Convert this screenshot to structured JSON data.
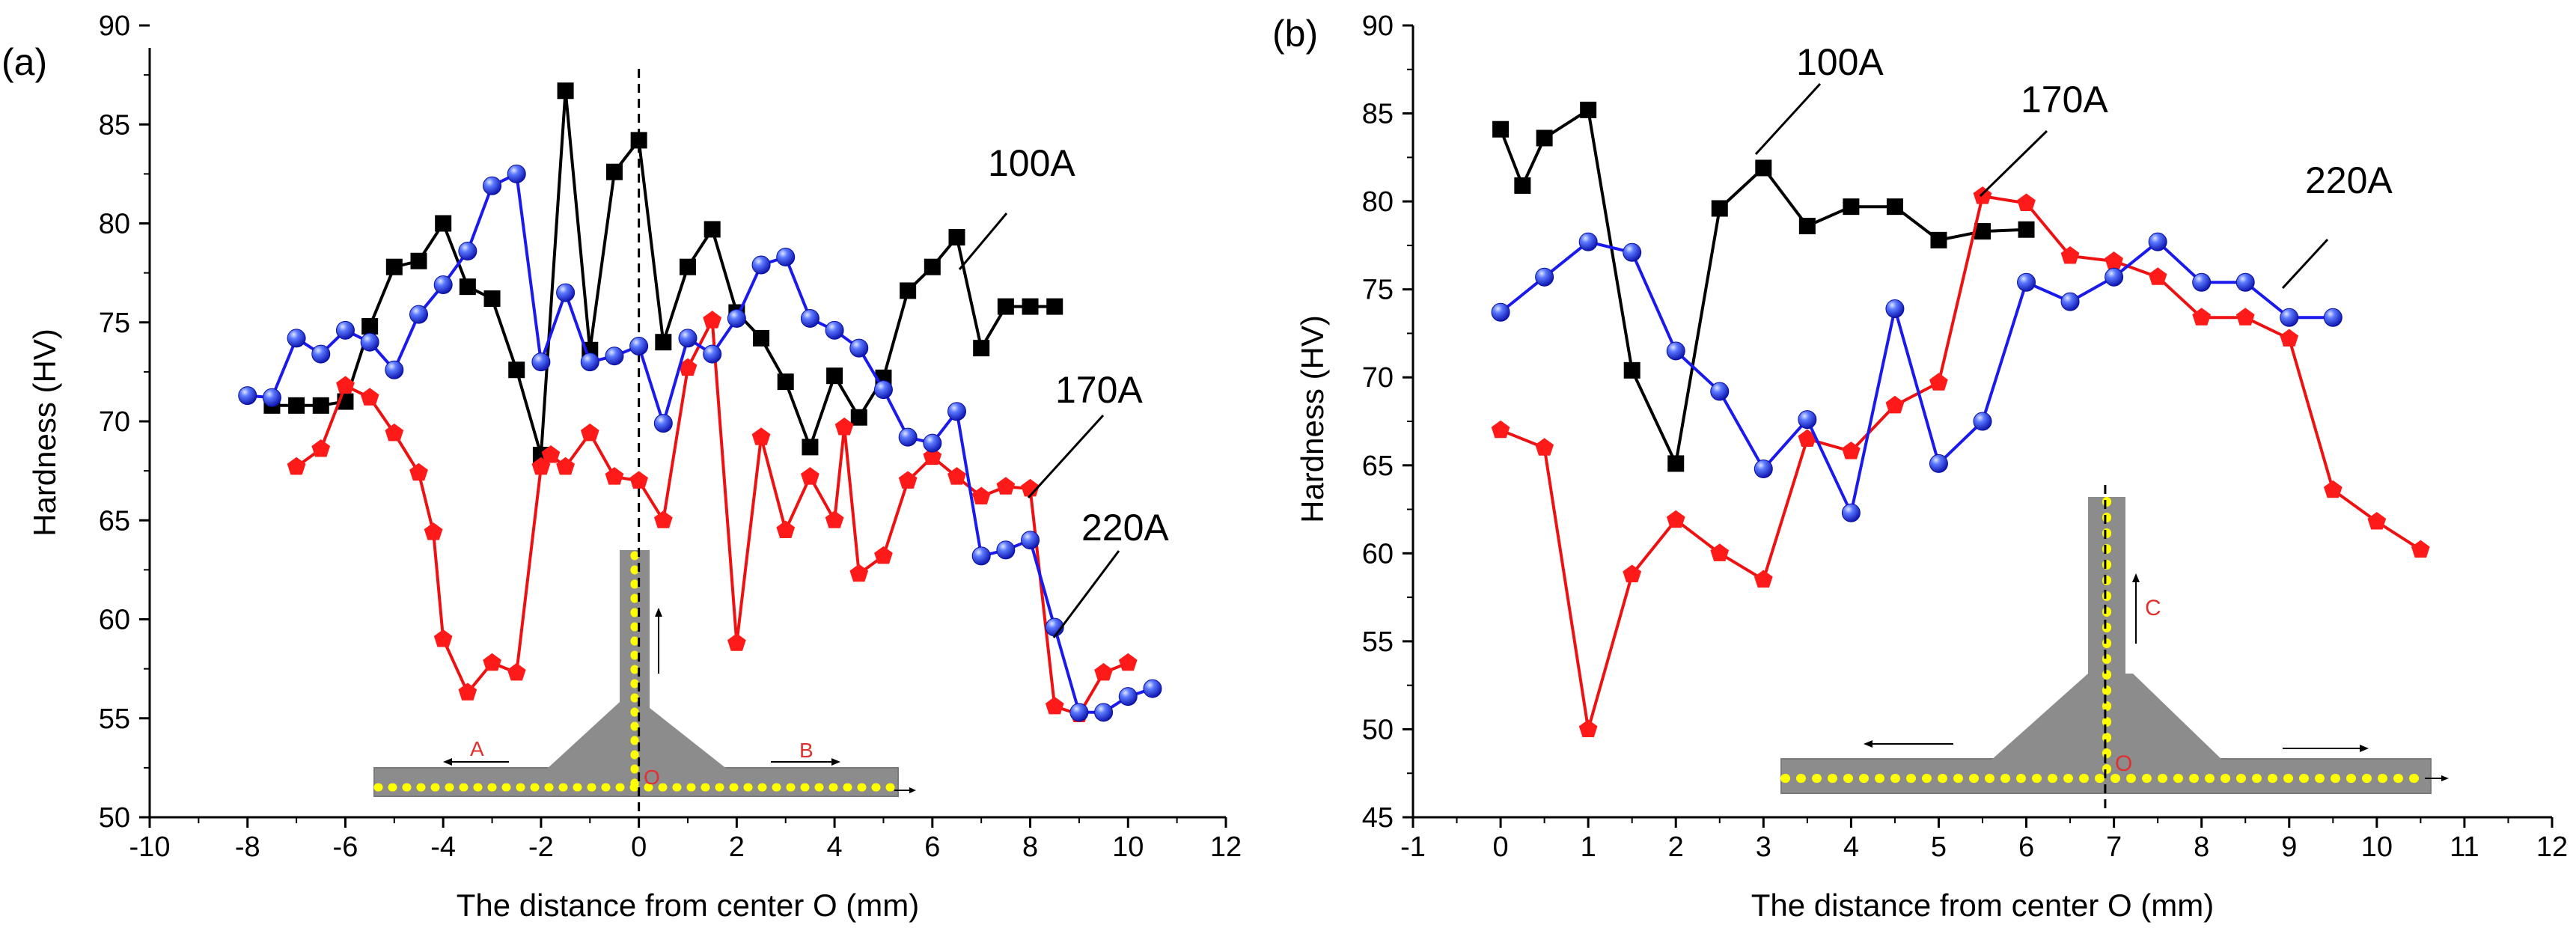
{
  "colors": {
    "series_100A": "#000000",
    "series_170A": "#ee1111",
    "series_220A": "#1a1aee",
    "marker_220A": "#3a5cff",
    "weld_gray": "#8c8c8c",
    "weld_dots": "#ffff00",
    "direction_labels": "#e03030"
  },
  "chart_data": [
    {
      "panel_label": "(a)",
      "type": "line",
      "xlabel": "The distance from center O (mm)",
      "ylabel": "Hardness (HV)",
      "xlim": [
        -10,
        12
      ],
      "ylim": [
        50,
        90
      ],
      "xticks": [
        -10,
        -8,
        -6,
        -4,
        -2,
        0,
        2,
        4,
        6,
        8,
        10,
        12
      ],
      "yticks": [
        50,
        55,
        60,
        65,
        70,
        75,
        80,
        85,
        90
      ],
      "tick_labels_x": [
        "-10",
        "-8",
        "-6",
        "-4",
        "-2",
        "0",
        "2",
        "4",
        "6",
        "8",
        "10",
        "12"
      ],
      "tick_labels_y": [
        "50",
        "55",
        "60",
        "65",
        "70",
        "75",
        "80",
        "85",
        "90"
      ],
      "vline_x": 0,
      "series": [
        {
          "name": "100A",
          "marker": "square",
          "x": [
            -7.5,
            -7,
            -6.5,
            -6,
            -5.5,
            -5,
            -4.5,
            -4,
            -3.5,
            -3,
            -2.5,
            -2,
            -1.5,
            -1,
            -0.5,
            0,
            0.5,
            1,
            1.5,
            2,
            2.5,
            3,
            3.5,
            4,
            4.5,
            5,
            5.5,
            6,
            6.5,
            7,
            7.5,
            8,
            8.5
          ],
          "y": [
            70.8,
            70.8,
            70.8,
            71,
            74.8,
            77.8,
            78.1,
            80,
            76.8,
            76.2,
            72.6,
            68.3,
            86.7,
            73.6,
            82.6,
            84.2,
            74,
            77.8,
            79.7,
            75.5,
            74.2,
            72,
            68.7,
            72.3,
            70.2,
            72.2,
            76.6,
            77.8,
            79.3,
            73.7,
            75.8,
            75.8,
            75.8
          ]
        },
        {
          "name": "170A",
          "marker": "pentagon",
          "x": [
            -7,
            -6.5,
            -6,
            -5.5,
            -5,
            -4.5,
            -4.2,
            -4,
            -3.5,
            -3,
            -2.5,
            -2,
            -1.8,
            -1.5,
            -1,
            -0.5,
            0,
            0.5,
            1,
            1.5,
            2,
            2.5,
            3,
            3.5,
            4,
            4.2,
            4.5,
            5,
            5.5,
            6,
            6.5,
            7,
            7.5,
            8,
            8.5,
            9,
            9.5,
            10
          ],
          "y": [
            67.7,
            68.6,
            71.8,
            71.2,
            69.4,
            67.4,
            64.4,
            59,
            56.3,
            57.8,
            57.3,
            67.7,
            68.3,
            67.7,
            69.4,
            67.2,
            67,
            65,
            72.7,
            75.1,
            58.8,
            69.2,
            64.5,
            67.2,
            65,
            69.7,
            62.3,
            63.2,
            67,
            68.2,
            67.2,
            66.2,
            66.7,
            66.6,
            55.6,
            55.2,
            57.3,
            57.8
          ]
        },
        {
          "name": "220A",
          "marker": "sphere",
          "x": [
            -8,
            -7.5,
            -7,
            -6.5,
            -6,
            -5.5,
            -5,
            -4.5,
            -4,
            -3.5,
            -3,
            -2.5,
            -2,
            -1.5,
            -1,
            -0.5,
            0,
            0.5,
            1,
            1.5,
            2,
            2.5,
            3,
            3.5,
            4,
            4.5,
            5,
            5.5,
            6,
            6.5,
            7,
            7.5,
            8,
            8.5,
            9,
            9.5,
            10,
            10.5
          ],
          "y": [
            71.3,
            71.2,
            74.2,
            73.4,
            74.6,
            74,
            72.6,
            75.4,
            76.9,
            78.6,
            81.9,
            82.5,
            73,
            76.5,
            73,
            73.3,
            73.8,
            69.9,
            74.2,
            73.4,
            75.2,
            77.9,
            78.3,
            75.2,
            74.6,
            73.7,
            71.6,
            69.2,
            68.9,
            70.5,
            63.2,
            63.5,
            64,
            59.6,
            55.3,
            55.3,
            56.1,
            56.5
          ]
        }
      ],
      "annotations": [
        {
          "text": "100A"
        },
        {
          "text": "170A"
        },
        {
          "text": "220A"
        }
      ],
      "inset": {
        "left_arrow_label": "A",
        "right_arrow_label": "B",
        "center_label": "O"
      }
    },
    {
      "panel_label": "(b)",
      "type": "line",
      "xlabel": "The distance from center O (mm)",
      "ylabel": "Hardness (HV)",
      "xlim": [
        -1,
        12
      ],
      "ylim": [
        45,
        90
      ],
      "xticks": [
        -1,
        0,
        1,
        2,
        3,
        4,
        5,
        6,
        7,
        8,
        9,
        10,
        11,
        12
      ],
      "yticks": [
        45,
        50,
        55,
        60,
        65,
        70,
        75,
        80,
        85,
        90
      ],
      "tick_labels_x": [
        "-1",
        "0",
        "1",
        "2",
        "3",
        "4",
        "5",
        "6",
        "7",
        "8",
        "9",
        "10",
        "11",
        "12"
      ],
      "tick_labels_y": [
        "45",
        "50",
        "55",
        "60",
        "65",
        "70",
        "75",
        "80",
        "85",
        "90"
      ],
      "vline_x": 6.9,
      "series": [
        {
          "name": "100A",
          "marker": "square",
          "x": [
            0,
            0.25,
            0.5,
            1,
            1.5,
            2,
            2.5,
            3,
            3.5,
            4,
            4.5,
            5,
            5.5,
            6
          ],
          "y": [
            84.1,
            80.9,
            83.6,
            85.2,
            70.4,
            65.1,
            79.6,
            81.9,
            78.6,
            79.7,
            79.7,
            77.8,
            78.3,
            78.4
          ]
        },
        {
          "name": "170A",
          "marker": "pentagon",
          "x": [
            0,
            0.5,
            1,
            1.5,
            2,
            2.5,
            3,
            3.5,
            4,
            4.5,
            5,
            5.5,
            6,
            6.5,
            7,
            7.5,
            8,
            8.5,
            9,
            9.5,
            10,
            10.5
          ],
          "y": [
            67,
            66,
            50,
            58.8,
            61.9,
            60,
            58.5,
            66.5,
            65.8,
            68.4,
            69.7,
            80.3,
            79.9,
            76.9,
            76.6,
            75.7,
            73.4,
            73.4,
            72.2,
            63.6,
            61.8,
            60.2
          ]
        },
        {
          "name": "220A",
          "marker": "sphere",
          "x": [
            0,
            0.5,
            1,
            1.5,
            2,
            2.5,
            3,
            3.5,
            4,
            4.5,
            5,
            5.5,
            6,
            6.5,
            7,
            7.5,
            8,
            8.5,
            9,
            9.5
          ],
          "y": [
            73.7,
            75.7,
            77.7,
            77.1,
            71.5,
            69.2,
            64.8,
            67.6,
            62.3,
            73.9,
            65.1,
            67.5,
            75.4,
            74.3,
            75.7,
            77.7,
            75.4,
            75.4,
            73.4,
            73.4
          ]
        }
      ],
      "annotations": [
        {
          "text": "100A"
        },
        {
          "text": "170A"
        },
        {
          "text": "220A"
        }
      ],
      "inset": {
        "arrow_label": "C",
        "center_label": "O"
      }
    }
  ]
}
